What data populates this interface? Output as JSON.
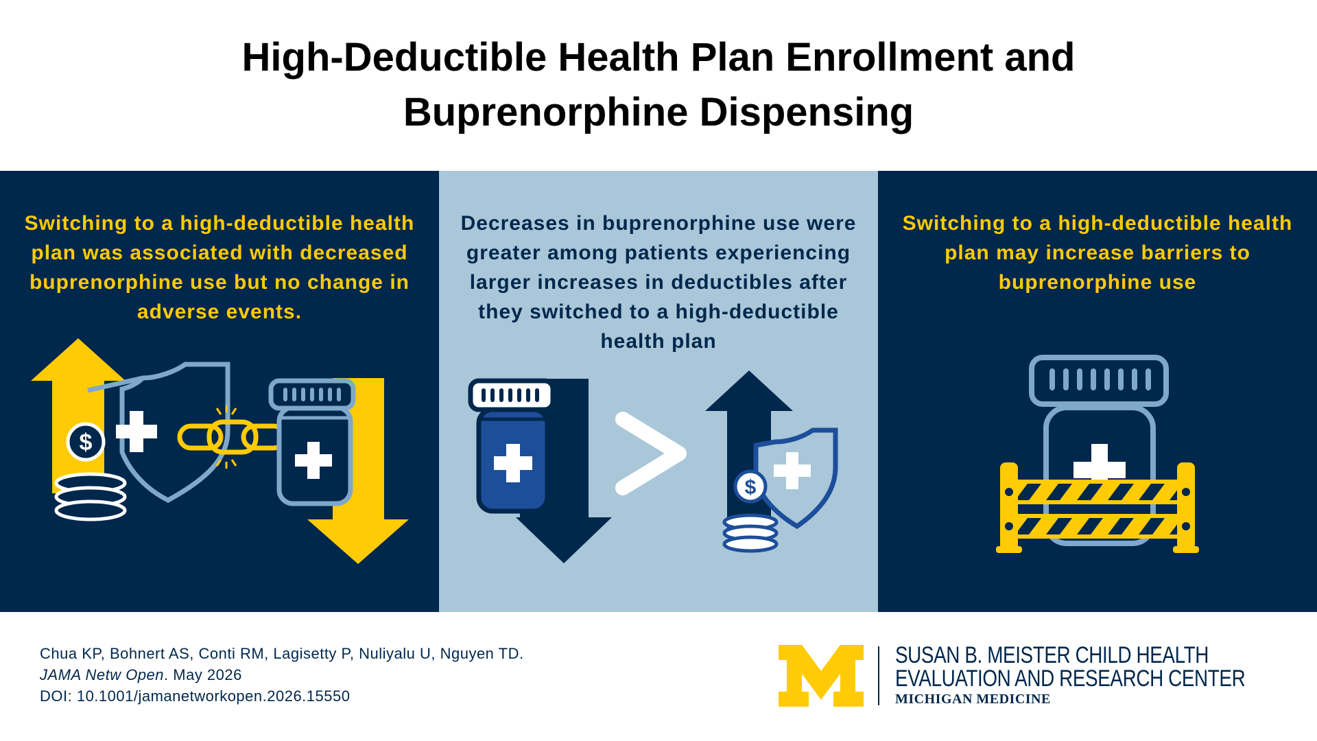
{
  "title": {
    "line1": "High-Deductible Health Plan Enrollment and",
    "line2": "Buprenorphine Dispensing"
  },
  "panels": [
    {
      "text": "Switching to a high-deductible health plan was associated with decreased buprenorphine use but no change in adverse events.",
      "icons": [
        "arrow-up-icon",
        "coins-icon",
        "shield-icon",
        "broken-chain-icon",
        "pill-bottle-icon",
        "arrow-down-icon"
      ]
    },
    {
      "text": "Decreases in buprenorphine use were greater among patients experiencing larger increases in deductibles after they switched to a high-deductible health plan",
      "icons": [
        "pill-bottle-icon",
        "arrow-down-icon",
        "greater-than-icon",
        "arrow-up-icon",
        "coins-icon",
        "shield-icon"
      ]
    },
    {
      "text": "Switching to a high-deductible health plan may increase barriers to buprenorphine use",
      "icons": [
        "pill-bottle-icon",
        "barrier-icon"
      ]
    }
  ],
  "citation": {
    "authors": "Chua KP, Bohnert AS, Conti RM, Lagisetty P, Nuliyalu U, Nguyen TD.",
    "journal": "JAMA Netw Open",
    "date": ". May 2026",
    "doi": "DOI: 10.1001/jamanetworkopen.2026.15550"
  },
  "branding": {
    "logo": "block-m-logo",
    "center_line1": "SUSAN B. MEISTER CHILD HEALTH",
    "center_line2": "EVALUATION AND RESEARCH CENTER",
    "subtitle": "MICHIGAN MEDICINE"
  },
  "colors": {
    "navy": "#00274c",
    "maize": "#ffcb05",
    "light_blue": "#a9c7d9",
    "steel_blue": "#7fa8c9",
    "royal_blue": "#1d4e9a"
  }
}
